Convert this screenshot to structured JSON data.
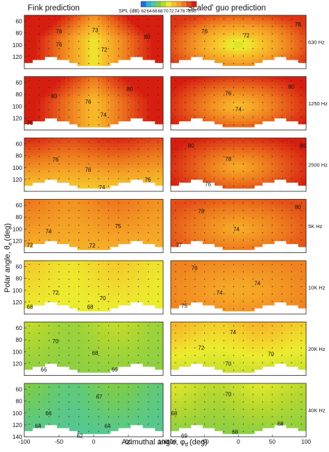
{
  "titles": {
    "left": "Fink prediction",
    "right": "'Scaled' guo prediction"
  },
  "colorbar": {
    "label": "SPL (dB)",
    "ticks": [
      "62",
      "64",
      "66",
      "68",
      "70",
      "72",
      "74",
      "76",
      "78",
      "80"
    ],
    "colors": [
      "#1e6fd6",
      "#2ab0d8",
      "#4cc7a0",
      "#7ccc4a",
      "#b8d82e",
      "#ecec2e",
      "#f6c22a",
      "#f5a226",
      "#ee7a1e",
      "#e34a18",
      "#d61e10"
    ]
  },
  "axes": {
    "ylabel": "Polar angle, θ",
    "ylabel_sub": "e",
    "ylabel_unit": "(deg)",
    "xlabel": "Azimuthal angle, φ",
    "xlabel_sub": "tf",
    "xlabel_unit": "(deg)",
    "xticks": [
      "-100",
      "-50",
      "0",
      "50",
      "100"
    ],
    "yticks": [
      "60",
      "80",
      "100",
      "120",
      "140"
    ]
  },
  "chart_data": {
    "type": "heatmap",
    "x_label": "Azimuthal angle, φtf (deg)",
    "y_label": "Polar angle, θe (deg)",
    "colorbar_label": "SPL (dB)",
    "xlim": [
      -100,
      100
    ],
    "ylim": [
      140,
      50
    ],
    "x_ticks": [
      -100,
      -50,
      0,
      50,
      100
    ],
    "y_ticks": [
      60,
      80,
      100,
      120,
      140
    ],
    "colorbar_range": [
      62,
      80
    ],
    "panel_columns": [
      "Fink prediction",
      "'Scaled' guo prediction"
    ],
    "frequencies": [
      "630 Hz",
      "1250 Hz",
      "2500 Hz",
      "5K Hz",
      "10K Hz",
      "20K Hz",
      "40K Hz"
    ],
    "rows": [
      {
        "frequency": "630 Hz",
        "fink": {
          "center_spl": 71,
          "edge_spl": 81,
          "pattern": "saddle",
          "contour_labels": [
            {
              "text": "76",
              "x": -50,
              "y": 77
            },
            {
              "text": "73",
              "x": 2,
              "y": 75
            },
            {
              "text": "76",
              "x": -50,
              "y": 99
            },
            {
              "text": "72",
              "x": 15,
              "y": 108
            },
            {
              "text": "80",
              "x": 77,
              "y": 86
            }
          ]
        },
        "guo": {
          "center_spl": 70,
          "edge_spl": 79,
          "pattern": "dome",
          "contour_labels": [
            {
              "text": "76",
              "x": -50,
              "y": 77
            },
            {
              "text": "72",
              "x": 12,
              "y": 84
            },
            {
              "text": "78",
              "x": 88,
              "y": 65
            }
          ]
        }
      },
      {
        "frequency": "1250 Hz",
        "fink": {
          "center_spl": 73,
          "edge_spl": 81,
          "pattern": "saddle",
          "contour_labels": [
            {
              "text": "80",
              "x": -57,
              "y": 83
            },
            {
              "text": "80",
              "x": 52,
              "y": 71
            },
            {
              "text": "76",
              "x": -8,
              "y": 92
            },
            {
              "text": "74",
              "x": 14,
              "y": 114
            },
            {
              "text": "76",
              "x": -92,
              "y": 128
            }
          ]
        },
        "guo": {
          "center_spl": 73,
          "edge_spl": 80,
          "pattern": "dome",
          "contour_labels": [
            {
              "text": "80",
              "x": 78,
              "y": 67
            },
            {
              "text": "76",
              "x": -15,
              "y": 78
            },
            {
              "text": "74",
              "x": 0,
              "y": 105
            }
          ]
        }
      },
      {
        "frequency": "2500 Hz",
        "fink": {
          "center_spl": 73,
          "edge_spl": 79,
          "pattern": "bands",
          "contour_labels": [
            {
              "text": "76",
              "x": -55,
              "y": 86
            },
            {
              "text": "76",
              "x": -8,
              "y": 103
            },
            {
              "text": "76",
              "x": 78,
              "y": 120
            },
            {
              "text": "74",
              "x": 12,
              "y": 133
            }
          ]
        },
        "guo": {
          "center_spl": 74,
          "edge_spl": 80,
          "pattern": "dome",
          "contour_labels": [
            {
              "text": "80",
              "x": -70,
              "y": 63
            },
            {
              "text": "80",
              "x": 95,
              "y": 63
            },
            {
              "text": "78",
              "x": -15,
              "y": 85
            },
            {
              "text": "76",
              "x": -45,
              "y": 128
            }
          ]
        }
      },
      {
        "frequency": "5K Hz",
        "fink": {
          "center_spl": 74,
          "edge_spl": 76,
          "pattern": "bands",
          "contour_labels": [
            {
              "text": "75",
              "x": 35,
              "y": 95
            },
            {
              "text": "74",
              "x": -65,
              "y": 104
            },
            {
              "text": "72",
              "x": -2,
              "y": 128
            },
            {
              "text": "72",
              "x": -92,
              "y": 127
            }
          ]
        },
        "guo": {
          "center_spl": 74,
          "edge_spl": 78,
          "pattern": "dome",
          "contour_labels": [
            {
              "text": "78",
              "x": -55,
              "y": 70
            },
            {
              "text": "80",
              "x": 88,
              "y": 63
            },
            {
              "text": "74",
              "x": -3,
              "y": 100
            },
            {
              "text": "77",
              "x": -88,
              "y": 127
            }
          ]
        }
      },
      {
        "frequency": "10K Hz",
        "fink": {
          "center_spl": 71,
          "edge_spl": 72,
          "pattern": "bands",
          "contour_labels": [
            {
              "text": "72",
              "x": -55,
              "y": 104
            },
            {
              "text": "70",
              "x": 13,
              "y": 113
            },
            {
              "text": "68",
              "x": -92,
              "y": 128
            },
            {
              "text": "68",
              "x": -5,
              "y": 128
            }
          ]
        },
        "guo": {
          "center_spl": 74,
          "edge_spl": 76,
          "pattern": "dome",
          "contour_labels": [
            {
              "text": "76",
              "x": -65,
              "y": 62
            },
            {
              "text": "74",
              "x": 28,
              "y": 88
            },
            {
              "text": "74",
              "x": -28,
              "y": 104
            },
            {
              "text": "75",
              "x": -80,
              "y": 126
            }
          ]
        }
      },
      {
        "frequency": "20K Hz",
        "fink": {
          "center_spl": 68,
          "edge_spl": 69,
          "pattern": "bands",
          "contour_labels": [
            {
              "text": "70",
              "x": -55,
              "y": 82
            },
            {
              "text": "68",
              "x": 2,
              "y": 102
            },
            {
              "text": "66",
              "x": -72,
              "y": 130
            },
            {
              "text": "66",
              "x": 30,
              "y": 130
            }
          ]
        },
        "guo": {
          "center_spl": 70,
          "edge_spl": 73,
          "pattern": "bands",
          "contour_labels": [
            {
              "text": "74",
              "x": -8,
              "y": 67
            },
            {
              "text": "72",
              "x": -55,
              "y": 93
            },
            {
              "text": "70",
              "x": 48,
              "y": 104
            },
            {
              "text": "70",
              "x": -15,
              "y": 120
            }
          ]
        }
      },
      {
        "frequency": "40K Hz",
        "fink": {
          "center_spl": 66,
          "edge_spl": 67,
          "pattern": "bands",
          "contour_labels": [
            {
              "text": "67",
              "x": 8,
              "y": 72
            },
            {
              "text": "66",
              "x": -65,
              "y": 100
            },
            {
              "text": "64",
              "x": -80,
              "y": 122
            },
            {
              "text": "64",
              "x": 20,
              "y": 122
            },
            {
              "text": "62",
              "x": -20,
              "y": 138
            }
          ]
        },
        "guo": {
          "center_spl": 68,
          "edge_spl": 70,
          "pattern": "bands",
          "contour_labels": [
            {
              "text": "70",
              "x": -15,
              "y": 68
            },
            {
              "text": "68",
              "x": -95,
              "y": 100
            },
            {
              "text": "68",
              "x": 62,
              "y": 118
            },
            {
              "text": "68",
              "x": -5,
              "y": 132
            },
            {
              "text": "69",
              "x": -80,
              "y": 138
            }
          ]
        }
      }
    ]
  }
}
